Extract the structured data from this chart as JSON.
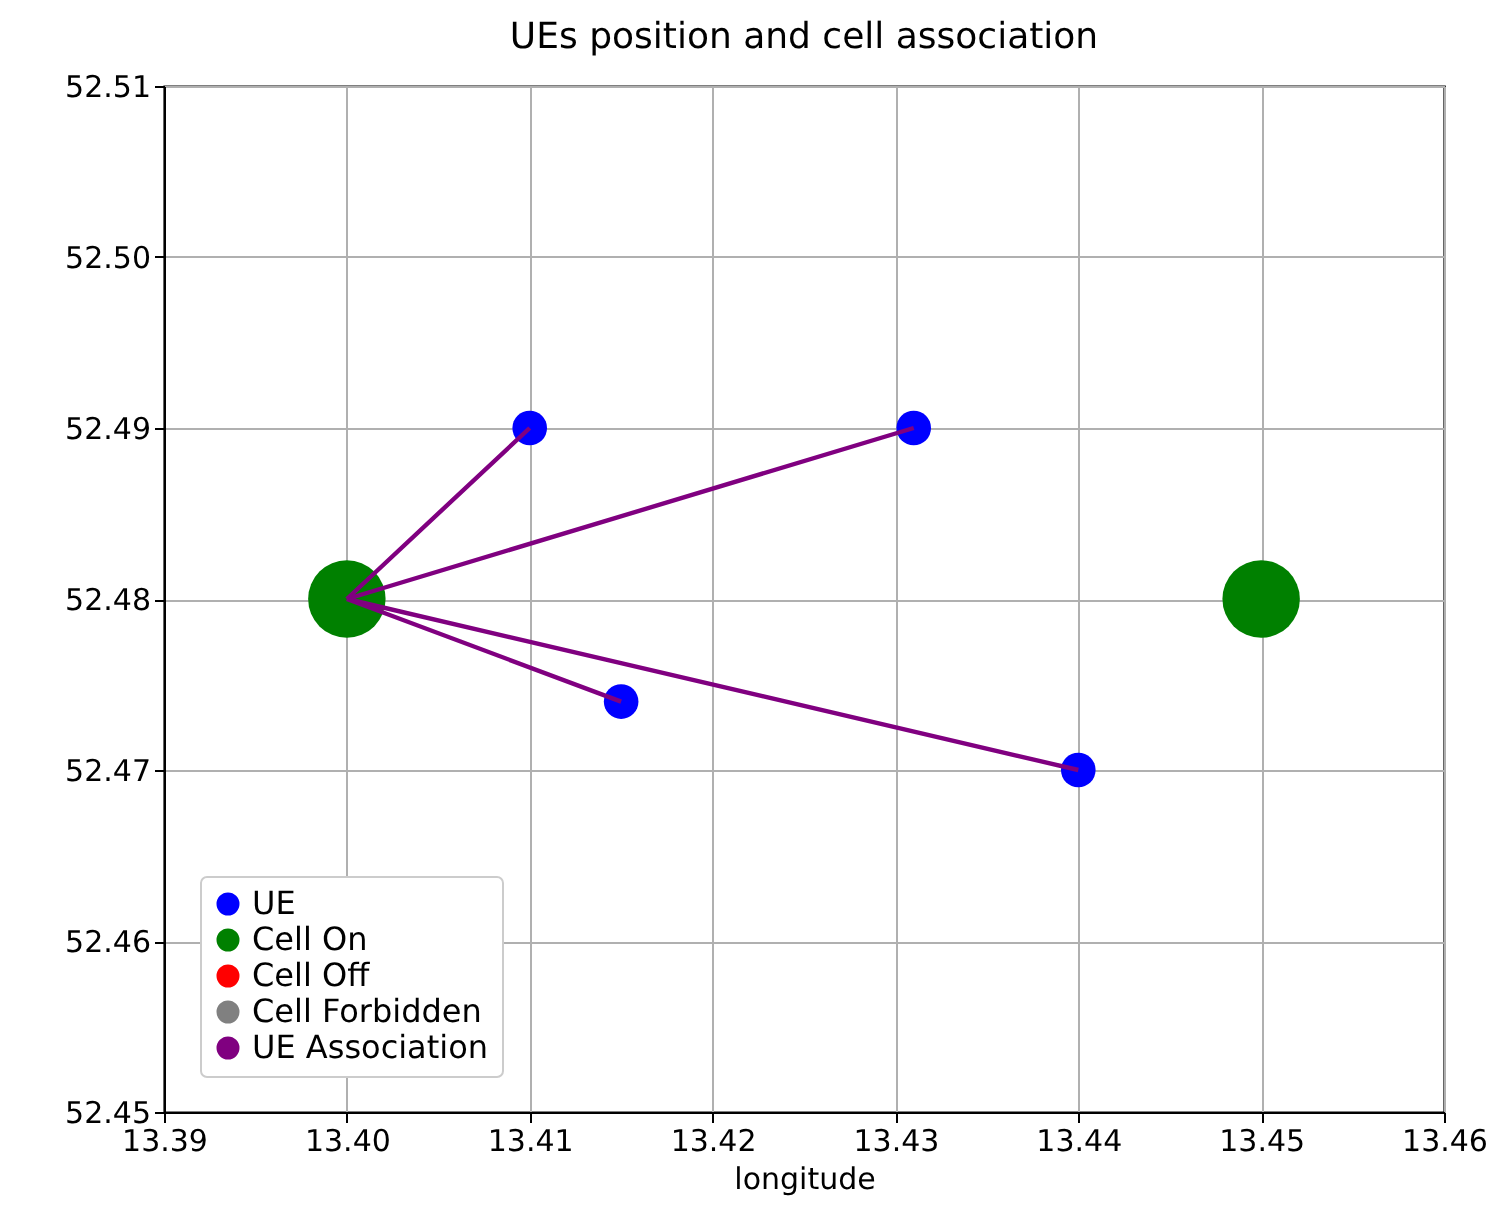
{
  "chart_data": {
    "type": "scatter",
    "title": "UEs position and cell association",
    "xlabel": "longitude",
    "xlim": [
      13.39,
      13.46
    ],
    "xticks": [
      13.39,
      {
        "value": 13.4,
        "label": "13.40"
      },
      13.41,
      13.42,
      13.43,
      13.44,
      13.45,
      13.46
    ],
    "ylim": [
      52.45,
      52.51
    ],
    "yticks": [
      52.45,
      52.46,
      52.47,
      52.48,
      52.49,
      {
        "value": 52.5,
        "label": "52.50"
      },
      52.51
    ],
    "grid": true,
    "legend": "bottom left",
    "marker": "circle",
    "series": [
      {
        "name": "UE",
        "color": "#0000ff",
        "x": [
          13.41,
          13.431,
          13.415,
          13.44
        ],
        "values": [
          52.49,
          52.49,
          52.474,
          52.47
        ]
      },
      {
        "name": "Cell On",
        "color": "#008000",
        "x": [
          13.4,
          13.45
        ],
        "values": [
          52.48,
          52.48
        ]
      },
      {
        "name": "Cell Off",
        "color": "#ff0000"
      },
      {
        "name": "Cell Forbidden",
        "color": "#808080"
      },
      {
        "name": "UE Association",
        "type": "line",
        "marker": "none",
        "color": "#800080",
        "x": [
          13.4,
          13.41,
          null,
          13.4,
          13.431,
          null,
          13.4,
          13.415,
          null,
          13.4,
          13.44
        ],
        "values": [
          52.48,
          52.49,
          null,
          52.48,
          52.49,
          null,
          52.48,
          52.474,
          null,
          52.48,
          52.47
        ]
      }
    ]
  }
}
